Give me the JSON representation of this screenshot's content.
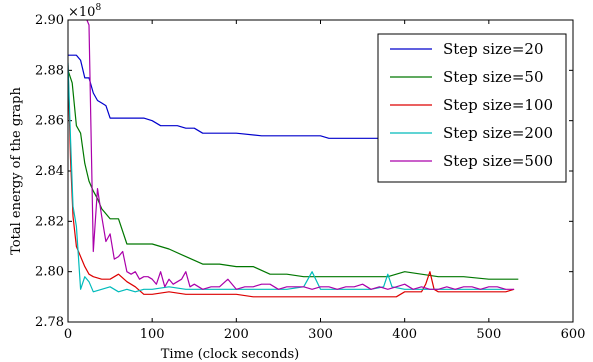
{
  "chart_data": {
    "type": "line",
    "xlabel": "Time (clock seconds)",
    "ylabel": "Total energy of the graph",
    "y_multiplier": "×10",
    "y_multiplier_exp": "8",
    "xlim": [
      0,
      600
    ],
    "ylim": [
      2.78,
      2.9
    ],
    "x_ticks": [
      0,
      100,
      200,
      300,
      400,
      500,
      600
    ],
    "x_tick_labels": [
      "0",
      "100",
      "200",
      "300",
      "400",
      "500",
      "600"
    ],
    "y_ticks": [
      2.78,
      2.8,
      2.82,
      2.84,
      2.86,
      2.88,
      2.9
    ],
    "y_tick_labels": [
      "2.78",
      "2.80",
      "2.82",
      "2.84",
      "2.86",
      "2.88",
      "2.90"
    ],
    "grid": false,
    "legend_position": "top-right",
    "series": [
      {
        "name": "Step size=20",
        "color": "#0000cc",
        "x": [
          0,
          5,
          10,
          15,
          20,
          25,
          30,
          35,
          40,
          45,
          50,
          55,
          60,
          70,
          80,
          90,
          100,
          110,
          120,
          130,
          140,
          150,
          160,
          170,
          180,
          200,
          230,
          260,
          300,
          310,
          350,
          390,
          400,
          415,
          440,
          470,
          510
        ],
        "y": [
          2.886,
          2.886,
          2.886,
          2.884,
          2.877,
          2.877,
          2.871,
          2.868,
          2.867,
          2.866,
          2.861,
          2.861,
          2.861,
          2.861,
          2.861,
          2.861,
          2.86,
          2.858,
          2.858,
          2.858,
          2.857,
          2.857,
          2.855,
          2.855,
          2.855,
          2.855,
          2.854,
          2.854,
          2.854,
          2.853,
          2.853,
          2.853,
          2.852,
          2.851,
          2.851,
          2.851,
          2.85
        ]
      },
      {
        "name": "Step size=50",
        "color": "#007700",
        "x": [
          0,
          5,
          10,
          15,
          20,
          25,
          30,
          35,
          40,
          45,
          50,
          55,
          60,
          70,
          80,
          90,
          100,
          120,
          140,
          160,
          180,
          200,
          220,
          240,
          260,
          280,
          300,
          320,
          340,
          360,
          380,
          400,
          420,
          440,
          470,
          500,
          535
        ],
        "y": [
          2.88,
          2.875,
          2.858,
          2.855,
          2.843,
          2.836,
          2.832,
          2.829,
          2.825,
          2.823,
          2.821,
          2.821,
          2.821,
          2.811,
          2.811,
          2.811,
          2.811,
          2.809,
          2.806,
          2.803,
          2.803,
          2.802,
          2.802,
          2.799,
          2.799,
          2.798,
          2.798,
          2.798,
          2.798,
          2.798,
          2.798,
          2.8,
          2.799,
          2.798,
          2.798,
          2.797,
          2.797
        ]
      },
      {
        "name": "Step size=100",
        "color": "#dd0000",
        "x": [
          0,
          3,
          6,
          10,
          15,
          20,
          25,
          30,
          40,
          50,
          60,
          70,
          80,
          90,
          100,
          120,
          140,
          160,
          180,
          200,
          220,
          240,
          260,
          280,
          300,
          330,
          360,
          390,
          400,
          420,
          425,
          430,
          435,
          440,
          460,
          480,
          500,
          520,
          530
        ],
        "y": [
          2.882,
          2.845,
          2.822,
          2.81,
          2.806,
          2.802,
          2.799,
          2.798,
          2.797,
          2.797,
          2.799,
          2.796,
          2.794,
          2.791,
          2.791,
          2.792,
          2.791,
          2.791,
          2.791,
          2.791,
          2.79,
          2.79,
          2.79,
          2.79,
          2.79,
          2.79,
          2.79,
          2.79,
          2.792,
          2.792,
          2.795,
          2.8,
          2.793,
          2.792,
          2.792,
          2.792,
          2.792,
          2.792,
          2.793
        ]
      },
      {
        "name": "Step size=200",
        "color": "#00bbbb",
        "x": [
          0,
          3,
          6,
          10,
          15,
          20,
          25,
          30,
          40,
          50,
          60,
          70,
          80,
          90,
          100,
          120,
          140,
          160,
          180,
          200,
          220,
          240,
          260,
          280,
          290,
          300,
          320,
          340,
          360,
          375,
          380,
          385,
          400,
          420,
          440,
          460,
          480,
          500,
          520
        ],
        "y": [
          2.883,
          2.853,
          2.826,
          2.818,
          2.793,
          2.798,
          2.796,
          2.792,
          2.793,
          2.794,
          2.792,
          2.793,
          2.792,
          2.793,
          2.793,
          2.794,
          2.793,
          2.793,
          2.793,
          2.793,
          2.793,
          2.793,
          2.793,
          2.794,
          2.8,
          2.793,
          2.793,
          2.793,
          2.793,
          2.794,
          2.799,
          2.794,
          2.793,
          2.793,
          2.793,
          2.793,
          2.793,
          2.793,
          2.793
        ]
      },
      {
        "name": "Step size=500",
        "color": "#aa00aa",
        "x": [
          20,
          25,
          30,
          35,
          40,
          45,
          50,
          55,
          60,
          65,
          70,
          75,
          80,
          85,
          90,
          95,
          100,
          105,
          110,
          115,
          120,
          125,
          130,
          135,
          140,
          145,
          150,
          160,
          170,
          180,
          190,
          200,
          210,
          220,
          230,
          240,
          250,
          260,
          270,
          280,
          290,
          300,
          310,
          320,
          330,
          340,
          350,
          360,
          370,
          380,
          390,
          400,
          410,
          420,
          430,
          440,
          450,
          460,
          470,
          480,
          490,
          500,
          510,
          520,
          530
        ],
        "y": [
          2.902,
          2.898,
          2.808,
          2.833,
          2.822,
          2.812,
          2.815,
          2.805,
          2.806,
          2.808,
          2.8,
          2.799,
          2.8,
          2.797,
          2.798,
          2.798,
          2.797,
          2.795,
          2.8,
          2.794,
          2.797,
          2.795,
          2.796,
          2.797,
          2.8,
          2.794,
          2.795,
          2.793,
          2.794,
          2.794,
          2.797,
          2.793,
          2.794,
          2.794,
          2.795,
          2.795,
          2.793,
          2.794,
          2.794,
          2.794,
          2.793,
          2.794,
          2.794,
          2.793,
          2.794,
          2.794,
          2.795,
          2.793,
          2.794,
          2.793,
          2.794,
          2.795,
          2.793,
          2.794,
          2.793,
          2.793,
          2.794,
          2.793,
          2.794,
          2.794,
          2.793,
          2.794,
          2.794,
          2.793,
          2.793
        ]
      }
    ]
  }
}
